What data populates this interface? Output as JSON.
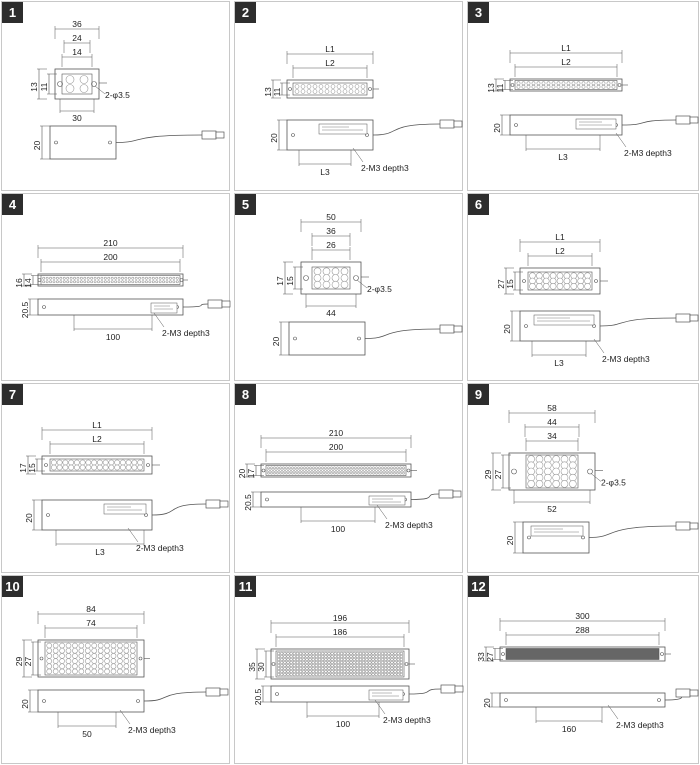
{
  "panels": [
    {
      "number": "1",
      "dims": {
        "w_outer": "36",
        "w_mid": "24",
        "w_inner": "14",
        "w_bottom": "30",
        "h_outer": "13",
        "h_inner": "11",
        "holes": "2-φ3.5",
        "side_h": "20"
      }
    },
    {
      "number": "2",
      "dims": {
        "w_outer": "L1",
        "w_inner": "L2",
        "h_outer": "13",
        "h_inner": "11",
        "side_h": "20",
        "side_len": "L3",
        "screws": "2-M3 depth3"
      }
    },
    {
      "number": "3",
      "dims": {
        "w_outer": "L1",
        "w_inner": "L2",
        "h_outer": "13",
        "h_inner": "11",
        "side_h": "20",
        "side_len": "L3",
        "screws": "2-M3 depth3"
      }
    },
    {
      "number": "4",
      "dims": {
        "w_outer": "210",
        "w_inner": "200",
        "h_outer": "16",
        "h_inner": "14",
        "side_h": "20.5",
        "side_len": "100",
        "screws": "2-M3 depth3"
      }
    },
    {
      "number": "5",
      "dims": {
        "w_outer": "50",
        "w_mid": "36",
        "w_inner": "26",
        "w_bottom": "44",
        "h_outer": "17",
        "h_inner": "15",
        "holes": "2-φ3.5",
        "side_h": "20"
      }
    },
    {
      "number": "6",
      "dims": {
        "w_outer": "L1",
        "w_inner": "L2",
        "h_outer": "27",
        "h_inner": "15",
        "side_h": "20",
        "side_len": "L3",
        "screws": "2-M3 depth3"
      }
    },
    {
      "number": "7",
      "dims": {
        "w_outer": "L1",
        "w_inner": "L2",
        "h_outer": "17",
        "h_inner": "15",
        "side_h": "20",
        "side_len": "L3",
        "screws": "2-M3 depth3"
      }
    },
    {
      "number": "8",
      "dims": {
        "w_outer": "210",
        "w_inner": "200",
        "h_outer": "20",
        "h_inner": "17",
        "side_h": "20.5",
        "side_len": "100",
        "screws": "2-M3 depth3"
      }
    },
    {
      "number": "9",
      "dims": {
        "w_outer": "58",
        "w_mid": "44",
        "w_inner": "34",
        "w_bottom": "52",
        "h_outer": "29",
        "h_inner": "27",
        "holes": "2-φ3.5",
        "side_h": "20"
      }
    },
    {
      "number": "10",
      "dims": {
        "w_outer": "84",
        "w_inner": "74",
        "h_outer": "29",
        "h_inner": "27",
        "side_h": "20",
        "side_len": "50",
        "screws": "2-M3 depth3"
      }
    },
    {
      "number": "11",
      "dims": {
        "w_outer": "196",
        "w_inner": "186",
        "h_outer": "35",
        "h_inner": "30",
        "side_h": "20.5",
        "side_len": "100",
        "screws": "2-M3 depth3"
      }
    },
    {
      "number": "12",
      "dims": {
        "w_outer": "300",
        "w_inner": "288",
        "h_outer": "33",
        "h_inner": "27",
        "side_h": "20",
        "side_len": "160",
        "screws": "2-M3 depth3"
      }
    }
  ],
  "colors": {
    "line": "#555555",
    "led": "#9a9a9a",
    "border": "#c8c8c8",
    "badge": "#2d2d2d"
  }
}
